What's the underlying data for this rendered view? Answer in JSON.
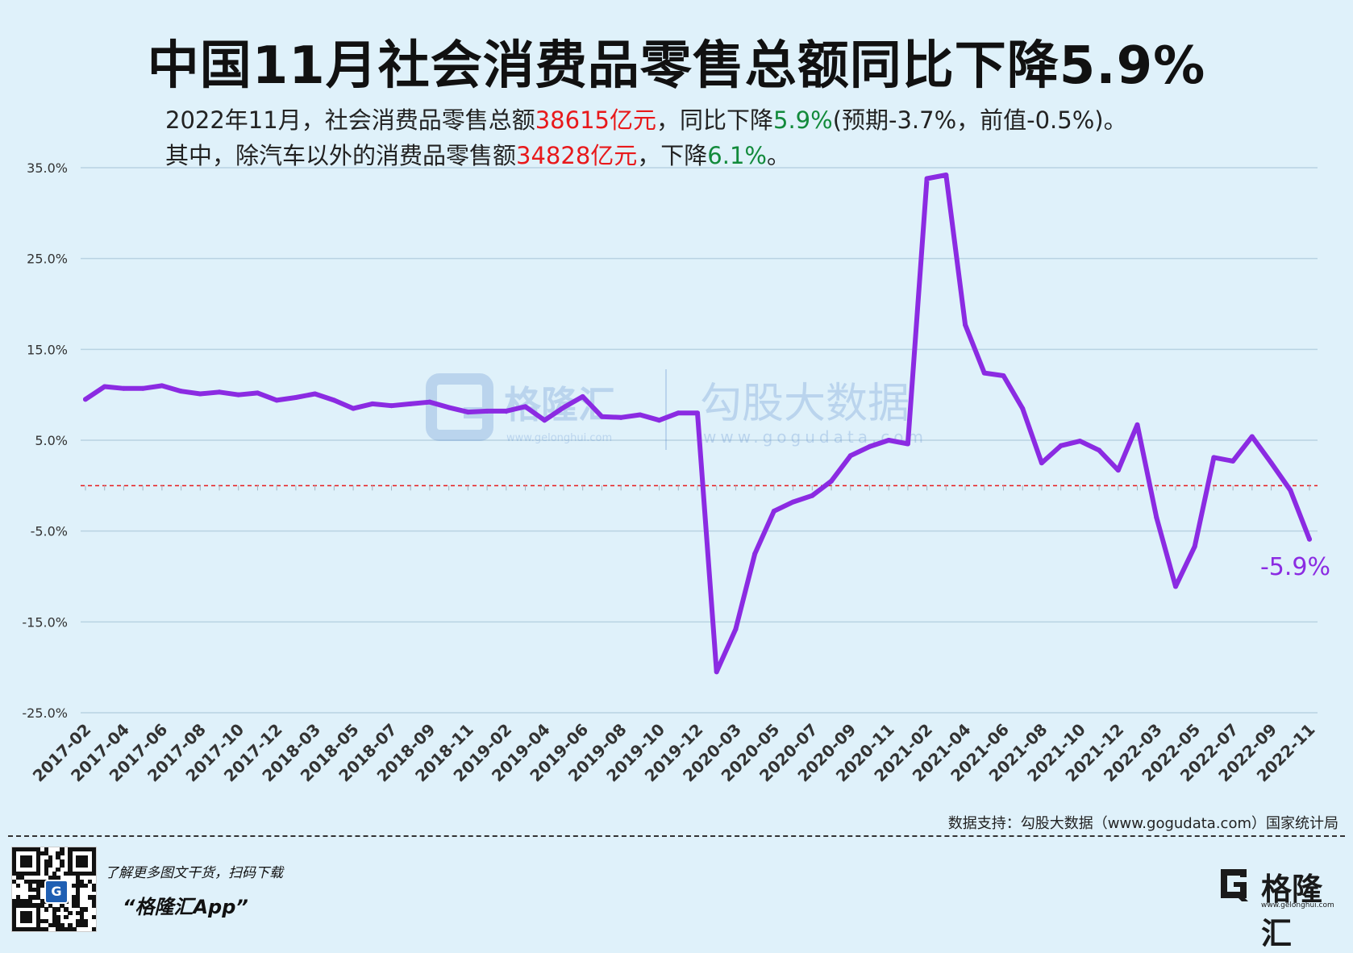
{
  "title": "中国11月社会消费品零售总额同比下降5.9%",
  "subtitle": {
    "line1_a": "2022年11月，社会消费品零售总额",
    "line1_b": "38615亿元",
    "line1_c": "，同比下降",
    "line1_d": "5.9%",
    "line1_e": "(预期-3.7%，前值-0.5%)。",
    "line2_a": "其中，除汽车以外的消费品零售额",
    "line2_b": "34828亿元",
    "line2_c": "，下降",
    "line2_d": "6.1%",
    "line2_e": "。"
  },
  "watermark": {
    "brand1": "格隆汇",
    "url1": "www.gelonghui.com",
    "brand2": "勾股大数据",
    "url2": "www.gogudata.com"
  },
  "source": "数据支持：勾股大数据（www.gogudata.com）国家统计局",
  "footer": {
    "promo_line1": "了解更多图文干货，扫码下载",
    "promo_line2": "“格隆汇App”",
    "logo_text": "格隆汇",
    "logo_url": "www.gelonghui.com",
    "qr_badge": "G"
  },
  "colors": {
    "line": "#8b2be2",
    "zero_line": "#e8191b",
    "grid": "#b9d3e2",
    "highlight_red": "#e8191b",
    "highlight_green": "#128a3b"
  },
  "chart_data": {
    "type": "line",
    "x_tick_labels": [
      "2017-02",
      "2017-04",
      "2017-06",
      "2017-08",
      "2017-10",
      "2017-12",
      "2018-03",
      "2018-05",
      "2018-07",
      "2018-09",
      "2018-11",
      "2019-02",
      "2019-04",
      "2019-06",
      "2019-08",
      "2019-10",
      "2019-12",
      "2020-03",
      "2020-05",
      "2020-07",
      "2020-09",
      "2020-11",
      "2021-02",
      "2021-04",
      "2021-06",
      "2021-08",
      "2021-10",
      "2021-12",
      "2022-03",
      "2022-05",
      "2022-07",
      "2022-09",
      "2022-11"
    ],
    "y_tick_labels": [
      "35.0%",
      "25.0%",
      "15.0%",
      "5.0%",
      "-5.0%",
      "-15.0%",
      "-25.0%"
    ],
    "ylim": [
      -25,
      35
    ],
    "y_ticks": [
      35,
      25,
      15,
      5,
      -5,
      -15,
      -25
    ],
    "reference_line": 0,
    "grid": true,
    "series": [
      {
        "values": [
          9.5,
          10.9,
          10.7,
          10.7,
          11.0,
          10.4,
          10.1,
          10.3,
          10.0,
          10.2,
          9.4,
          9.7,
          10.1,
          9.4,
          8.5,
          9.0,
          8.8,
          9.0,
          9.2,
          8.6,
          8.1,
          8.2,
          8.2,
          8.7,
          7.2,
          8.6,
          9.8,
          7.6,
          7.5,
          7.8,
          7.2,
          8.0,
          8.0,
          -20.5,
          -15.8,
          -7.5,
          -2.8,
          -1.8,
          -1.1,
          0.5,
          3.3,
          4.3,
          5.0,
          4.6,
          33.8,
          34.2,
          17.7,
          12.4,
          12.1,
          8.5,
          2.5,
          4.4,
          4.9,
          3.9,
          1.7,
          6.7,
          -3.5,
          -11.1,
          -6.7,
          3.1,
          2.7,
          5.4,
          2.5,
          -0.5,
          -5.9
        ],
        "end_label": "-5.9%"
      }
    ]
  }
}
